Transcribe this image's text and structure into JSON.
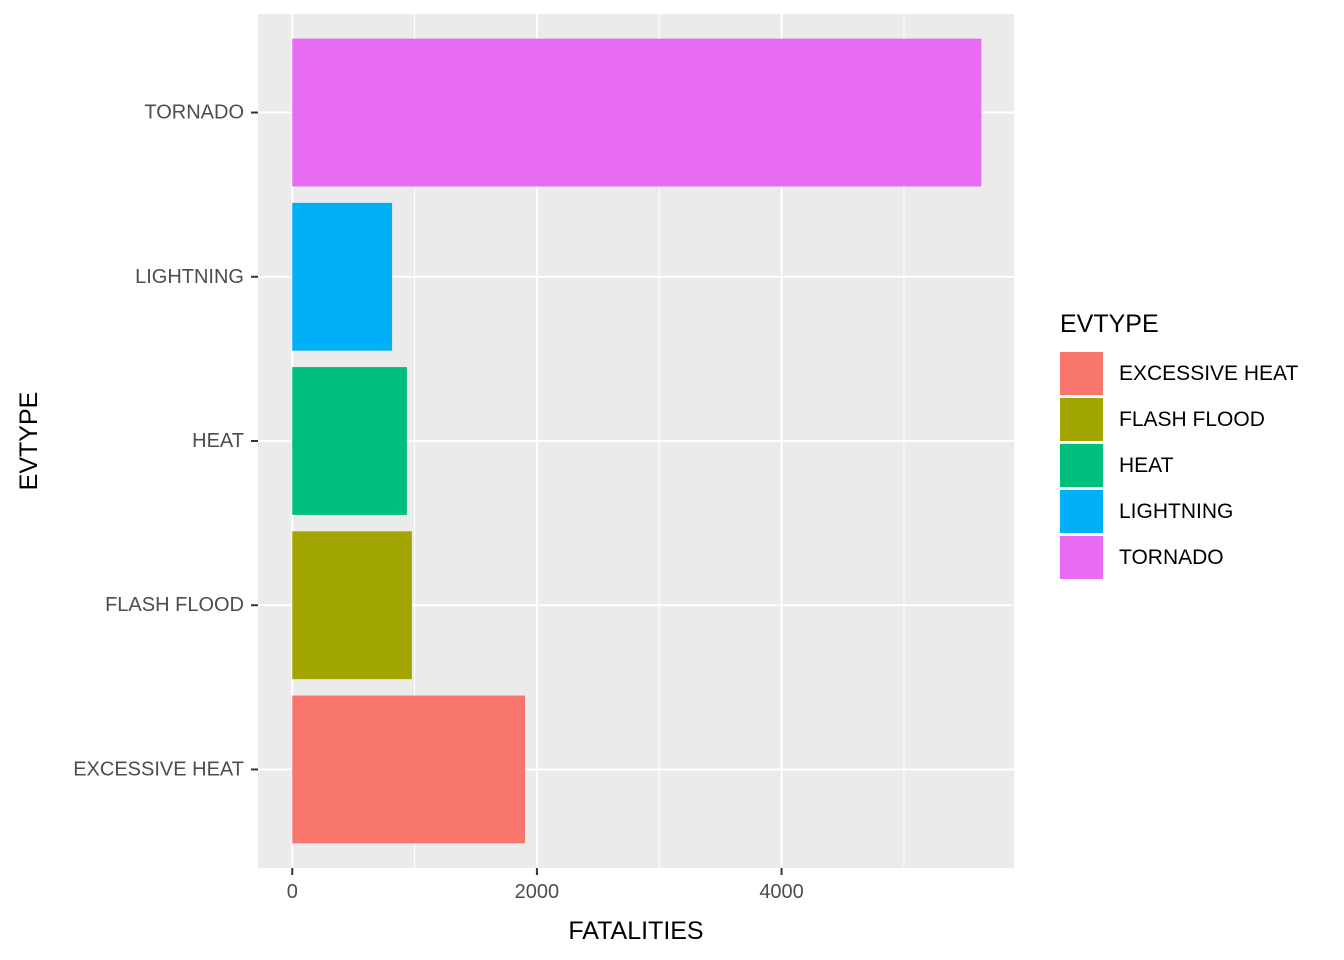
{
  "chart_data": {
    "type": "bar",
    "orientation": "horizontal",
    "categories": [
      "EXCESSIVE HEAT",
      "FLASH FLOOD",
      "HEAT",
      "LIGHTNING",
      "TORNADO"
    ],
    "values": [
      1903,
      978,
      937,
      816,
      5633
    ],
    "colors": [
      "#F8766D",
      "#A3A500",
      "#00BF7D",
      "#00B0F6",
      "#E76BF3"
    ],
    "xlabel": "FATALITIES",
    "ylabel": "EVTYPE",
    "x_ticks": [
      0,
      2000,
      4000
    ],
    "x_tick_labels": [
      "0",
      "2000",
      "4000"
    ],
    "xlim": [
      -280,
      5900
    ],
    "grid": true,
    "legend": {
      "title": "EVTYPE",
      "position": "right",
      "entries": [
        "EXCESSIVE HEAT",
        "FLASH FLOOD",
        "HEAT",
        "LIGHTNING",
        "TORNADO"
      ]
    },
    "panel_background": "#EBEBEB",
    "grid_color": "#FFFFFF"
  }
}
